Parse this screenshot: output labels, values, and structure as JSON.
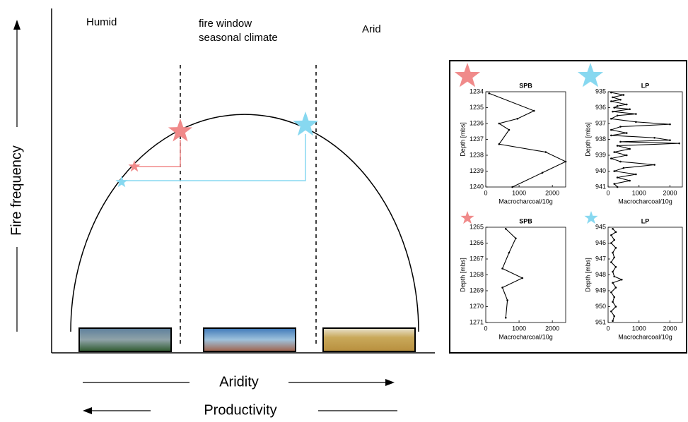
{
  "diagram": {
    "zones": [
      "Humid",
      "fire window",
      "seasonal climate",
      "Arid"
    ],
    "y_axis_label": "Fire frequency",
    "x_axis_label_top": "Aridity",
    "x_axis_label_bottom": "Productivity"
  },
  "chart_data": [
    {
      "type": "line",
      "title": "SPB",
      "xlabel": "Macrocharcoal/10g",
      "ylabel": "Depth [mbs]",
      "color": "#000000",
      "y": [
        1234.1,
        1235.2,
        1235.7,
        1236.0,
        1236.4,
        1237.3,
        1237.8,
        1238.4,
        1239.1,
        1240.0
      ],
      "values": [
        100,
        1450,
        950,
        400,
        700,
        400,
        1800,
        2400,
        1700,
        800
      ],
      "xlim": [
        0,
        2400
      ],
      "xticks": [
        0,
        1000,
        2000
      ],
      "ylim": [
        1234,
        1240
      ],
      "yticks": [
        1234,
        1235,
        1236,
        1237,
        1238,
        1239,
        1240
      ]
    },
    {
      "type": "line",
      "title": "LP",
      "xlabel": "Macrocharcoal/10g",
      "ylabel": "Depth [mbs]",
      "color": "#000000",
      "y": [
        935.05,
        935.2,
        935.35,
        935.5,
        935.6,
        935.8,
        935.9,
        936.0,
        936.1,
        936.25,
        936.4,
        936.5,
        936.7,
        936.9,
        937.05,
        937.2,
        937.4,
        937.6,
        937.75,
        937.9,
        938.05,
        938.15,
        938.25,
        938.4,
        938.6,
        938.8,
        939.0,
        939.2,
        939.4,
        939.6,
        939.8,
        940.0,
        940.2,
        940.4,
        940.6,
        940.8,
        941.0
      ],
      "values": [
        100,
        500,
        150,
        400,
        100,
        600,
        300,
        200,
        700,
        150,
        900,
        300,
        100,
        900,
        2000,
        400,
        100,
        600,
        100,
        1500,
        2000,
        400,
        2300,
        300,
        700,
        200,
        600,
        100,
        400,
        1500,
        500,
        200,
        900,
        300,
        700,
        200,
        300
      ],
      "xlim": [
        0,
        2400
      ],
      "xticks": [
        0,
        1000,
        2000
      ],
      "ylim": [
        935,
        941
      ],
      "yticks": [
        935,
        936,
        937,
        938,
        939,
        940,
        941
      ]
    },
    {
      "type": "line",
      "title": "SPB",
      "xlabel": "Macrocharcoal/10g",
      "ylabel": "Depth [mbs]",
      "color": "#000000",
      "y": [
        1265.1,
        1265.7,
        1266.6,
        1267.6,
        1268.2,
        1268.8,
        1269.6,
        1270.7
      ],
      "values": [
        600,
        900,
        700,
        500,
        1100,
        500,
        650,
        600
      ],
      "xlim": [
        0,
        2400
      ],
      "xticks": [
        0,
        1000,
        2000
      ],
      "ylim": [
        1265,
        1271
      ],
      "yticks": [
        1265,
        1266,
        1267,
        1268,
        1269,
        1270,
        1271
      ]
    },
    {
      "type": "line",
      "title": "LP",
      "xlabel": "Macrocharcoal/10g",
      "ylabel": "Depth [mbs]",
      "color": "#000000",
      "y": [
        945.1,
        945.3,
        945.5,
        945.8,
        946.0,
        946.3,
        946.6,
        946.9,
        947.2,
        947.5,
        947.8,
        948.1,
        948.3,
        948.5,
        948.8,
        949.1,
        949.4,
        949.7,
        950.0,
        950.3,
        950.6,
        950.9
      ],
      "values": [
        150,
        250,
        100,
        200,
        100,
        250,
        150,
        200,
        100,
        250,
        150,
        200,
        440,
        150,
        250,
        100,
        200,
        150,
        250,
        100,
        200,
        150
      ],
      "xlim": [
        0,
        2400
      ],
      "xticks": [
        0,
        1000,
        2000
      ],
      "ylim": [
        945,
        951
      ],
      "yticks": [
        945,
        946,
        947,
        948,
        949,
        950,
        951
      ]
    }
  ]
}
